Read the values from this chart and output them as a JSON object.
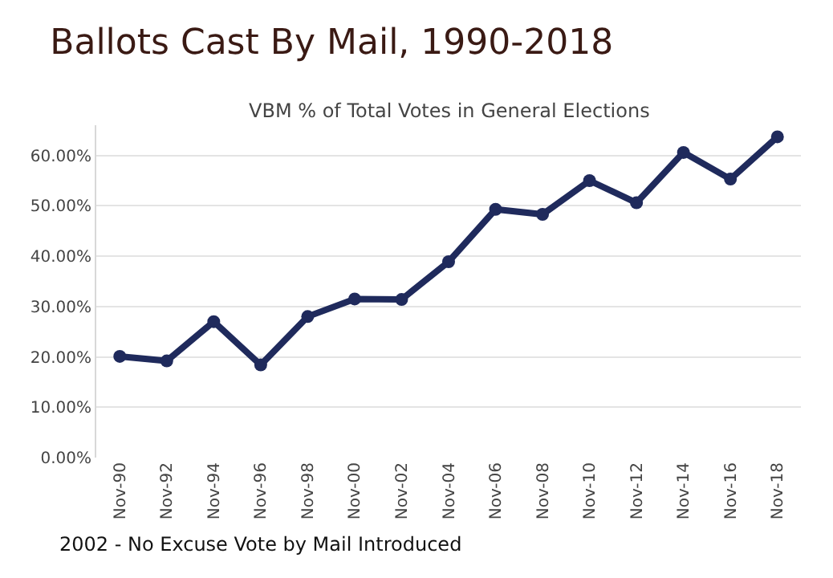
{
  "chart_data": {
    "type": "line",
    "title": "Ballots Cast By Mail, 1990-2018",
    "subtitle": "VBM % of Total Votes in General Elections",
    "categories": [
      "Nov-90",
      "Nov-92",
      "Nov-94",
      "Nov-96",
      "Nov-98",
      "Nov-00",
      "Nov-02",
      "Nov-04",
      "Nov-06",
      "Nov-08",
      "Nov-10",
      "Nov-12",
      "Nov-14",
      "Nov-16",
      "Nov-18"
    ],
    "series": [
      {
        "color": "#1f2a5c",
        "values": [
          20.1,
          19.2,
          27,
          18.4,
          28,
          31.5,
          31.4,
          38.9,
          49.3,
          48.3,
          55,
          50.6,
          60.6,
          55.3,
          63.7
        ]
      }
    ],
    "ylim": [
      0,
      66
    ],
    "yticks": [
      {
        "value": 0,
        "label": "0.00%"
      },
      {
        "value": 10,
        "label": "10.00%"
      },
      {
        "value": 20,
        "label": "20.00%"
      },
      {
        "value": 30,
        "label": "30.00%"
      },
      {
        "value": 40,
        "label": "40.00%"
      },
      {
        "value": 50,
        "label": "50.00%"
      },
      {
        "value": 60,
        "label": "60.00%"
      }
    ],
    "grid": "y",
    "marker": "circle",
    "line_style": "solid",
    "legend": false,
    "annotations": [
      "2002 - No Excuse Vote by Mail Introduced"
    ]
  }
}
